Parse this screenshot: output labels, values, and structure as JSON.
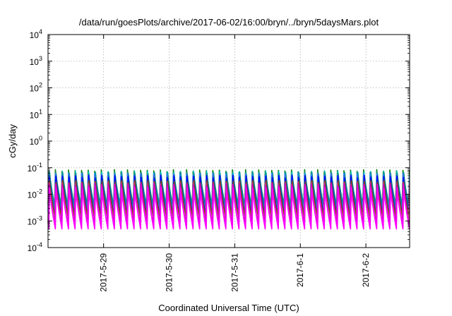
{
  "chart_data": {
    "type": "line",
    "title": "/data/run/goesPlots/archive/2017-06-02/16:00/bryn/../bryn/5daysMars.plot",
    "xlabel": "Coordinated Universal Time (UTC)",
    "ylabel": "cGy/day",
    "y_scale": "log",
    "ylim": [
      0.0001,
      10000
    ],
    "y_ticks": [
      {
        "value": 0.0001,
        "base": "10",
        "exp": "-4"
      },
      {
        "value": 0.001,
        "base": "10",
        "exp": "-3"
      },
      {
        "value": 0.01,
        "base": "10",
        "exp": "-2"
      },
      {
        "value": 0.1,
        "base": "10",
        "exp": "-1"
      },
      {
        "value": 1,
        "base": "10",
        "exp": "0"
      },
      {
        "value": 10,
        "base": "10",
        "exp": "1"
      },
      {
        "value": 100,
        "base": "10",
        "exp": "2"
      },
      {
        "value": 1000,
        "base": "10",
        "exp": "3"
      },
      {
        "value": 10000,
        "base": "10",
        "exp": "4"
      }
    ],
    "xlim": [
      "2017-05-28T03:40",
      "2017-06-02T16:00"
    ],
    "x_ticks": [
      {
        "value": "2017-05-29T00:00",
        "label": "2017-5-29"
      },
      {
        "value": "2017-05-30T00:00",
        "label": "2017-5-30"
      },
      {
        "value": "2017-05-31T00:00",
        "label": "2017-5-31"
      },
      {
        "value": "2017-06-01T00:00",
        "label": "2017-6-1"
      },
      {
        "value": "2017-06-02T00:00",
        "label": "2017-6-2"
      }
    ],
    "grid": true,
    "period_hours": 2.4,
    "series": [
      {
        "color": "#ff00ff",
        "peak": 0.016,
        "trough": 0.0005
      },
      {
        "color": "#e000e0",
        "peak": 0.02,
        "trough": 0.0006
      },
      {
        "color": "#cc00cc",
        "peak": 0.023,
        "trough": 0.0007
      },
      {
        "color": "#c04080",
        "peak": 0.026,
        "trough": 0.0008
      },
      {
        "color": "#8b4513",
        "peak": 0.03,
        "trough": 0.0011
      },
      {
        "color": "#0000ff",
        "peak": 0.045,
        "trough": 0.0014
      },
      {
        "color": "#4169e1",
        "peak": 0.05,
        "trough": 0.0018
      },
      {
        "color": "#1e90ff",
        "peak": 0.055,
        "trough": 0.0022
      },
      {
        "color": "#008b8b",
        "peak": 0.06,
        "trough": 0.0026
      },
      {
        "color": "#00ced1",
        "peak": 0.065,
        "trough": 0.003
      },
      {
        "color": "#2e8b57",
        "peak": 0.07,
        "trough": 0.0035
      },
      {
        "color": "#008000",
        "peak": 0.075,
        "trough": 0.004
      }
    ]
  }
}
